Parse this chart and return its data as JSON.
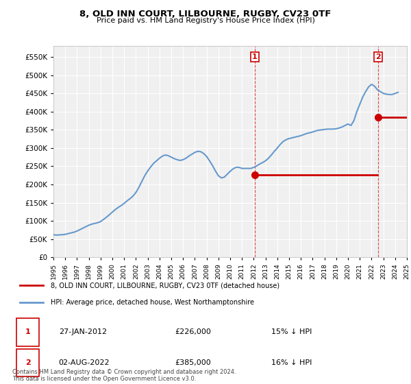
{
  "title": "8, OLD INN COURT, LILBOURNE, RUGBY, CV23 0TF",
  "subtitle": "Price paid vs. HM Land Registry's House Price Index (HPI)",
  "background_color": "#ffffff",
  "plot_background": "#f0f0f0",
  "grid_color": "#ffffff",
  "ylabel_color": "#000000",
  "ylim": [
    0,
    580000
  ],
  "yticks": [
    0,
    50000,
    100000,
    150000,
    200000,
    250000,
    300000,
    350000,
    400000,
    450000,
    500000,
    550000
  ],
  "ytick_labels": [
    "£0",
    "£50K",
    "£100K",
    "£150K",
    "£200K",
    "£250K",
    "£300K",
    "£350K",
    "£400K",
    "£450K",
    "£500K",
    "£550K"
  ],
  "hpi_color": "#6699cc",
  "price_color": "#cc0000",
  "transaction1": {
    "date": "27-JAN-2012",
    "price": 226000,
    "label": "1",
    "hpi_diff": "15% ↓ HPI"
  },
  "transaction2": {
    "date": "02-AUG-2022",
    "price": 385000,
    "label": "2",
    "hpi_diff": "16% ↓ HPI"
  },
  "legend_entry1": "8, OLD INN COURT, LILBOURNE, RUGBY, CV23 0TF (detached house)",
  "legend_entry2": "HPI: Average price, detached house, West Northamptonshire",
  "footnote": "Contains HM Land Registry data © Crown copyright and database right 2024.\nThis data is licensed under the Open Government Licence v3.0.",
  "hpi_data": {
    "dates": [
      1995.0,
      1995.25,
      1995.5,
      1995.75,
      1996.0,
      1996.25,
      1996.5,
      1996.75,
      1997.0,
      1997.25,
      1997.5,
      1997.75,
      1998.0,
      1998.25,
      1998.5,
      1998.75,
      1999.0,
      1999.25,
      1999.5,
      1999.75,
      2000.0,
      2000.25,
      2000.5,
      2000.75,
      2001.0,
      2001.25,
      2001.5,
      2001.75,
      2002.0,
      2002.25,
      2002.5,
      2002.75,
      2003.0,
      2003.25,
      2003.5,
      2003.75,
      2004.0,
      2004.25,
      2004.5,
      2004.75,
      2005.0,
      2005.25,
      2005.5,
      2005.75,
      2006.0,
      2006.25,
      2006.5,
      2006.75,
      2007.0,
      2007.25,
      2007.5,
      2007.75,
      2008.0,
      2008.25,
      2008.5,
      2008.75,
      2009.0,
      2009.25,
      2009.5,
      2009.75,
      2010.0,
      2010.25,
      2010.5,
      2010.75,
      2011.0,
      2011.25,
      2011.5,
      2011.75,
      2012.0,
      2012.25,
      2012.5,
      2012.75,
      2013.0,
      2013.25,
      2013.5,
      2013.75,
      2014.0,
      2014.25,
      2014.5,
      2014.75,
      2015.0,
      2015.25,
      2015.5,
      2015.75,
      2016.0,
      2016.25,
      2016.5,
      2016.75,
      2017.0,
      2017.25,
      2017.5,
      2017.75,
      2018.0,
      2018.25,
      2018.5,
      2018.75,
      2019.0,
      2019.25,
      2019.5,
      2019.75,
      2020.0,
      2020.25,
      2020.5,
      2020.75,
      2021.0,
      2021.25,
      2021.5,
      2021.75,
      2022.0,
      2022.25,
      2022.5,
      2022.75,
      2023.0,
      2023.25,
      2023.5,
      2023.75,
      2024.0,
      2024.25
    ],
    "values": [
      62000,
      61000,
      61500,
      62000,
      63000,
      65000,
      67000,
      69000,
      72000,
      76000,
      80000,
      84000,
      88000,
      91000,
      93000,
      95000,
      98000,
      104000,
      110000,
      117000,
      124000,
      131000,
      137000,
      142000,
      148000,
      155000,
      161000,
      168000,
      178000,
      192000,
      208000,
      224000,
      237000,
      248000,
      258000,
      265000,
      272000,
      278000,
      281000,
      279000,
      275000,
      271000,
      268000,
      266000,
      268000,
      272000,
      278000,
      283000,
      288000,
      291000,
      290000,
      285000,
      277000,
      265000,
      252000,
      237000,
      224000,
      218000,
      220000,
      228000,
      236000,
      243000,
      247000,
      247000,
      244000,
      244000,
      244000,
      244000,
      247000,
      251000,
      256000,
      260000,
      265000,
      272000,
      281000,
      291000,
      300000,
      310000,
      318000,
      323000,
      326000,
      328000,
      330000,
      332000,
      334000,
      337000,
      340000,
      342000,
      344000,
      347000,
      349000,
      350000,
      351000,
      352000,
      352000,
      352000,
      353000,
      355000,
      358000,
      362000,
      366000,
      362000,
      375000,
      400000,
      420000,
      440000,
      455000,
      468000,
      475000,
      470000,
      460000,
      455000,
      450000,
      448000,
      447000,
      447000,
      450000,
      453000
    ]
  },
  "price_paid_data": {
    "dates": [
      2012.08,
      2022.58
    ],
    "values": [
      226000,
      385000
    ]
  },
  "vline1_x": 2012.08,
  "vline2_x": 2022.58,
  "xmin": 1995.0,
  "xmax": 2025.0
}
